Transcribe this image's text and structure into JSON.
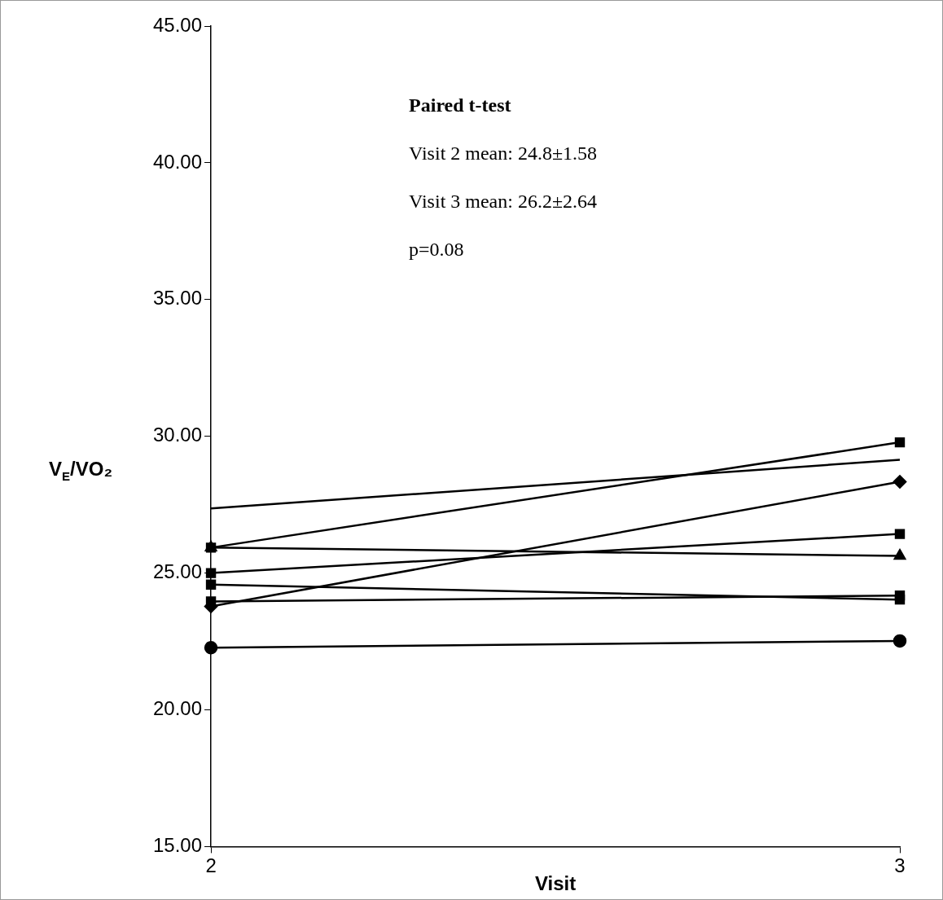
{
  "chart_data": {
    "type": "line",
    "xlabel": "Visit",
    "ylabel": "V$_{E}$/VO₂",
    "x": [
      2,
      3
    ],
    "xlim": [
      2,
      3
    ],
    "xticks": [
      2,
      3
    ],
    "ylim": [
      15,
      45
    ],
    "yticks": [
      {
        "value": 15,
        "label": "15.00"
      },
      {
        "value": 20,
        "label": "20.00"
      },
      {
        "value": 25,
        "label": "25.00"
      },
      {
        "value": 30,
        "label": "30.00"
      },
      {
        "value": 35,
        "label": "35.00"
      },
      {
        "value": 40,
        "label": "40.00"
      },
      {
        "value": 45,
        "label": "45.00"
      }
    ],
    "grid": false,
    "legend": false,
    "line_style": "solid",
    "series": [
      {
        "color": "#000000",
        "marker": "none",
        "values": [
          27.36,
          29.14
        ]
      },
      {
        "color": "#000000",
        "marker": "square",
        "values": [
          25.93,
          29.78
        ]
      },
      {
        "color": "#000000",
        "marker": "triangle",
        "values": [
          25.93,
          25.63
        ]
      },
      {
        "color": "#000000",
        "marker": "square",
        "values": [
          25.0,
          26.43
        ]
      },
      {
        "color": "#000000",
        "marker": "square",
        "values": [
          24.58,
          24.03
        ]
      },
      {
        "color": "#000000",
        "marker": "square",
        "values": [
          23.96,
          24.18
        ]
      },
      {
        "color": "#000000",
        "marker": "diamond",
        "values": [
          23.78,
          28.34
        ]
      },
      {
        "color": "#000000",
        "marker": "circle",
        "values": [
          22.27,
          22.52
        ]
      }
    ],
    "annotations": [
      "Paired t-test",
      "Visit 2 mean: 24.8±1.58",
      "Visit 3 mean: 26.2±2.64",
      "p=0.08"
    ]
  }
}
